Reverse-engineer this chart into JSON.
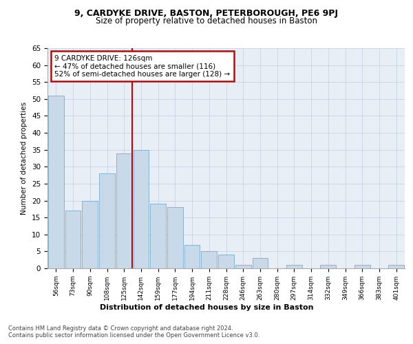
{
  "title1": "9, CARDYKE DRIVE, BASTON, PETERBOROUGH, PE6 9PJ",
  "title2": "Size of property relative to detached houses in Baston",
  "xlabel": "Distribution of detached houses by size in Baston",
  "ylabel": "Number of detached properties",
  "categories": [
    "56sqm",
    "73sqm",
    "90sqm",
    "108sqm",
    "125sqm",
    "142sqm",
    "159sqm",
    "177sqm",
    "194sqm",
    "211sqm",
    "228sqm",
    "246sqm",
    "263sqm",
    "280sqm",
    "297sqm",
    "314sqm",
    "332sqm",
    "349sqm",
    "366sqm",
    "383sqm",
    "401sqm"
  ],
  "values": [
    51,
    17,
    20,
    28,
    34,
    35,
    19,
    18,
    7,
    5,
    4,
    1,
    3,
    0,
    1,
    0,
    1,
    0,
    1,
    0,
    1
  ],
  "bar_color": "#c8d9ea",
  "bar_edge_color": "#7aaac8",
  "highlight_index": 4,
  "highlight_line_color": "#cc0000",
  "ylim": [
    0,
    65
  ],
  "yticks": [
    0,
    5,
    10,
    15,
    20,
    25,
    30,
    35,
    40,
    45,
    50,
    55,
    60,
    65
  ],
  "annotation_text": "9 CARDYKE DRIVE: 126sqm\n← 47% of detached houses are smaller (116)\n52% of semi-detached houses are larger (128) →",
  "annotation_box_color": "#cc0000",
  "footer1": "Contains HM Land Registry data © Crown copyright and database right 2024.",
  "footer2": "Contains public sector information licensed under the Open Government Licence v3.0.",
  "background_color": "#e8eef5",
  "plot_background": "#ffffff"
}
